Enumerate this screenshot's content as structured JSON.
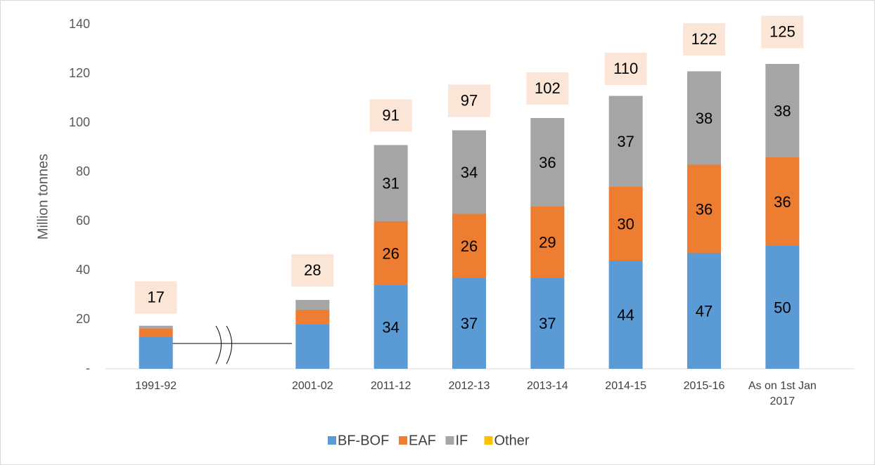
{
  "chart_data": {
    "type": "stacked_bar",
    "y_label": "Million tonnes",
    "categories": [
      "1991-92",
      null,
      "2001-02",
      "2011-12",
      "2012-13",
      "2013-14",
      "2014-15",
      "2015-16",
      "As on 1st Jan 2017"
    ],
    "series": [
      {
        "name": "BF-BOF",
        "color": "#5b9bd5",
        "values": [
          13,
          null,
          18,
          34,
          37,
          37,
          44,
          47,
          50
        ],
        "value_labels": [
          null,
          null,
          null,
          "34",
          "37",
          "37",
          "44",
          "47",
          "50"
        ]
      },
      {
        "name": "EAF",
        "color": "#ed7d31",
        "values": [
          3.5,
          null,
          6,
          26,
          26,
          29,
          30,
          36,
          36
        ],
        "value_labels": [
          null,
          null,
          null,
          "26",
          "26",
          "29",
          "30",
          "36",
          "36"
        ]
      },
      {
        "name": "IF",
        "color": "#a5a5a5",
        "values": [
          1,
          null,
          4,
          31,
          34,
          36,
          37,
          38,
          38
        ],
        "value_labels": [
          null,
          null,
          null,
          "31",
          "34",
          "36",
          "37",
          "38",
          "38"
        ]
      },
      {
        "name": "Other",
        "color": "#ffc000",
        "values": [
          0,
          null,
          0,
          0,
          0,
          0,
          0,
          0,
          0
        ]
      }
    ],
    "totals": [
      17,
      null,
      28,
      91,
      97,
      102,
      110,
      122,
      125
    ],
    "ylim": [
      0,
      140
    ],
    "yticks": [
      {
        "value": 0,
        "label": "-"
      },
      20,
      40,
      60,
      80,
      100,
      120,
      140
    ],
    "grid": false,
    "legend": "bottom"
  }
}
